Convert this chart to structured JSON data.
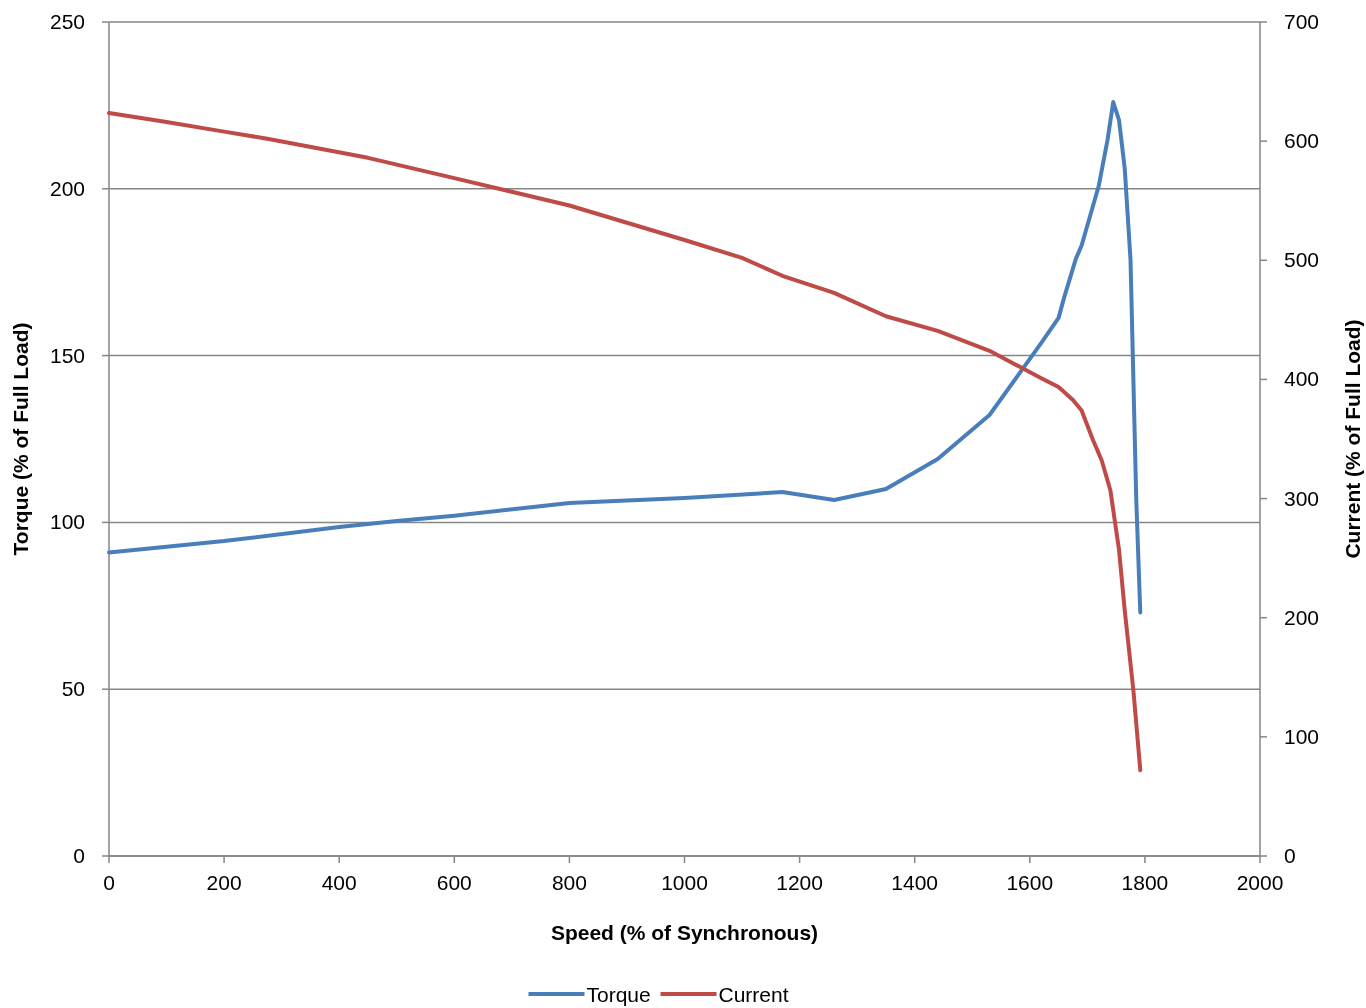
{
  "chart_data": {
    "type": "line",
    "xlabel": "Speed (% of Synchronous)",
    "ylabel": "Torque (% of Full Load)",
    "y2label": "Current (% of Full Load)",
    "xlim": [
      0,
      2000
    ],
    "xticks": [
      0,
      200,
      400,
      600,
      800,
      1000,
      1200,
      1400,
      1600,
      1800,
      2000
    ],
    "ylim": [
      0,
      250
    ],
    "yticks": [
      0,
      50,
      100,
      150,
      200,
      250
    ],
    "y2lim": [
      0,
      700
    ],
    "y2ticks": [
      0,
      100,
      200,
      300,
      400,
      500,
      600,
      700
    ],
    "grid": "y",
    "legend": "bottom",
    "marker": "none",
    "line_style": "solid",
    "series": [
      {
        "name": "Torque",
        "color": "#4a7ebb",
        "x": [
          0,
          200,
          400,
          500,
          600,
          800,
          1000,
          1170,
          1260,
          1350,
          1440,
          1530,
          1620,
          1650,
          1660,
          1680,
          1690,
          1720,
          1735,
          1745,
          1755,
          1765,
          1775,
          1785,
          1792
        ],
        "values": [
          91,
          94.4,
          98.6,
          100.4,
          102,
          105.8,
          107.3,
          109.1,
          106.7,
          110,
          119,
          132.2,
          153.8,
          161.3,
          167.6,
          179,
          183,
          201,
          214.6,
          226,
          220.6,
          206,
          178.7,
          106.7,
          73
        ]
      },
      {
        "name": "Current",
        "color": "#be4b48",
        "axis": "y2",
        "x": [
          0,
          100,
          200,
          275,
          450,
          600,
          800,
          1000,
          1100,
          1170,
          1260,
          1350,
          1440,
          1530,
          1620,
          1650,
          1675,
          1690,
          1710,
          1725,
          1740,
          1755,
          1765,
          1780,
          1792
        ],
        "values": [
          623.6,
          616,
          608,
          602,
          586,
          569,
          546,
          517,
          502,
          487,
          472.6,
          453,
          440.7,
          424,
          401,
          393.6,
          382.7,
          374,
          349,
          332,
          307,
          257,
          206,
          139,
          72
        ]
      }
    ]
  }
}
